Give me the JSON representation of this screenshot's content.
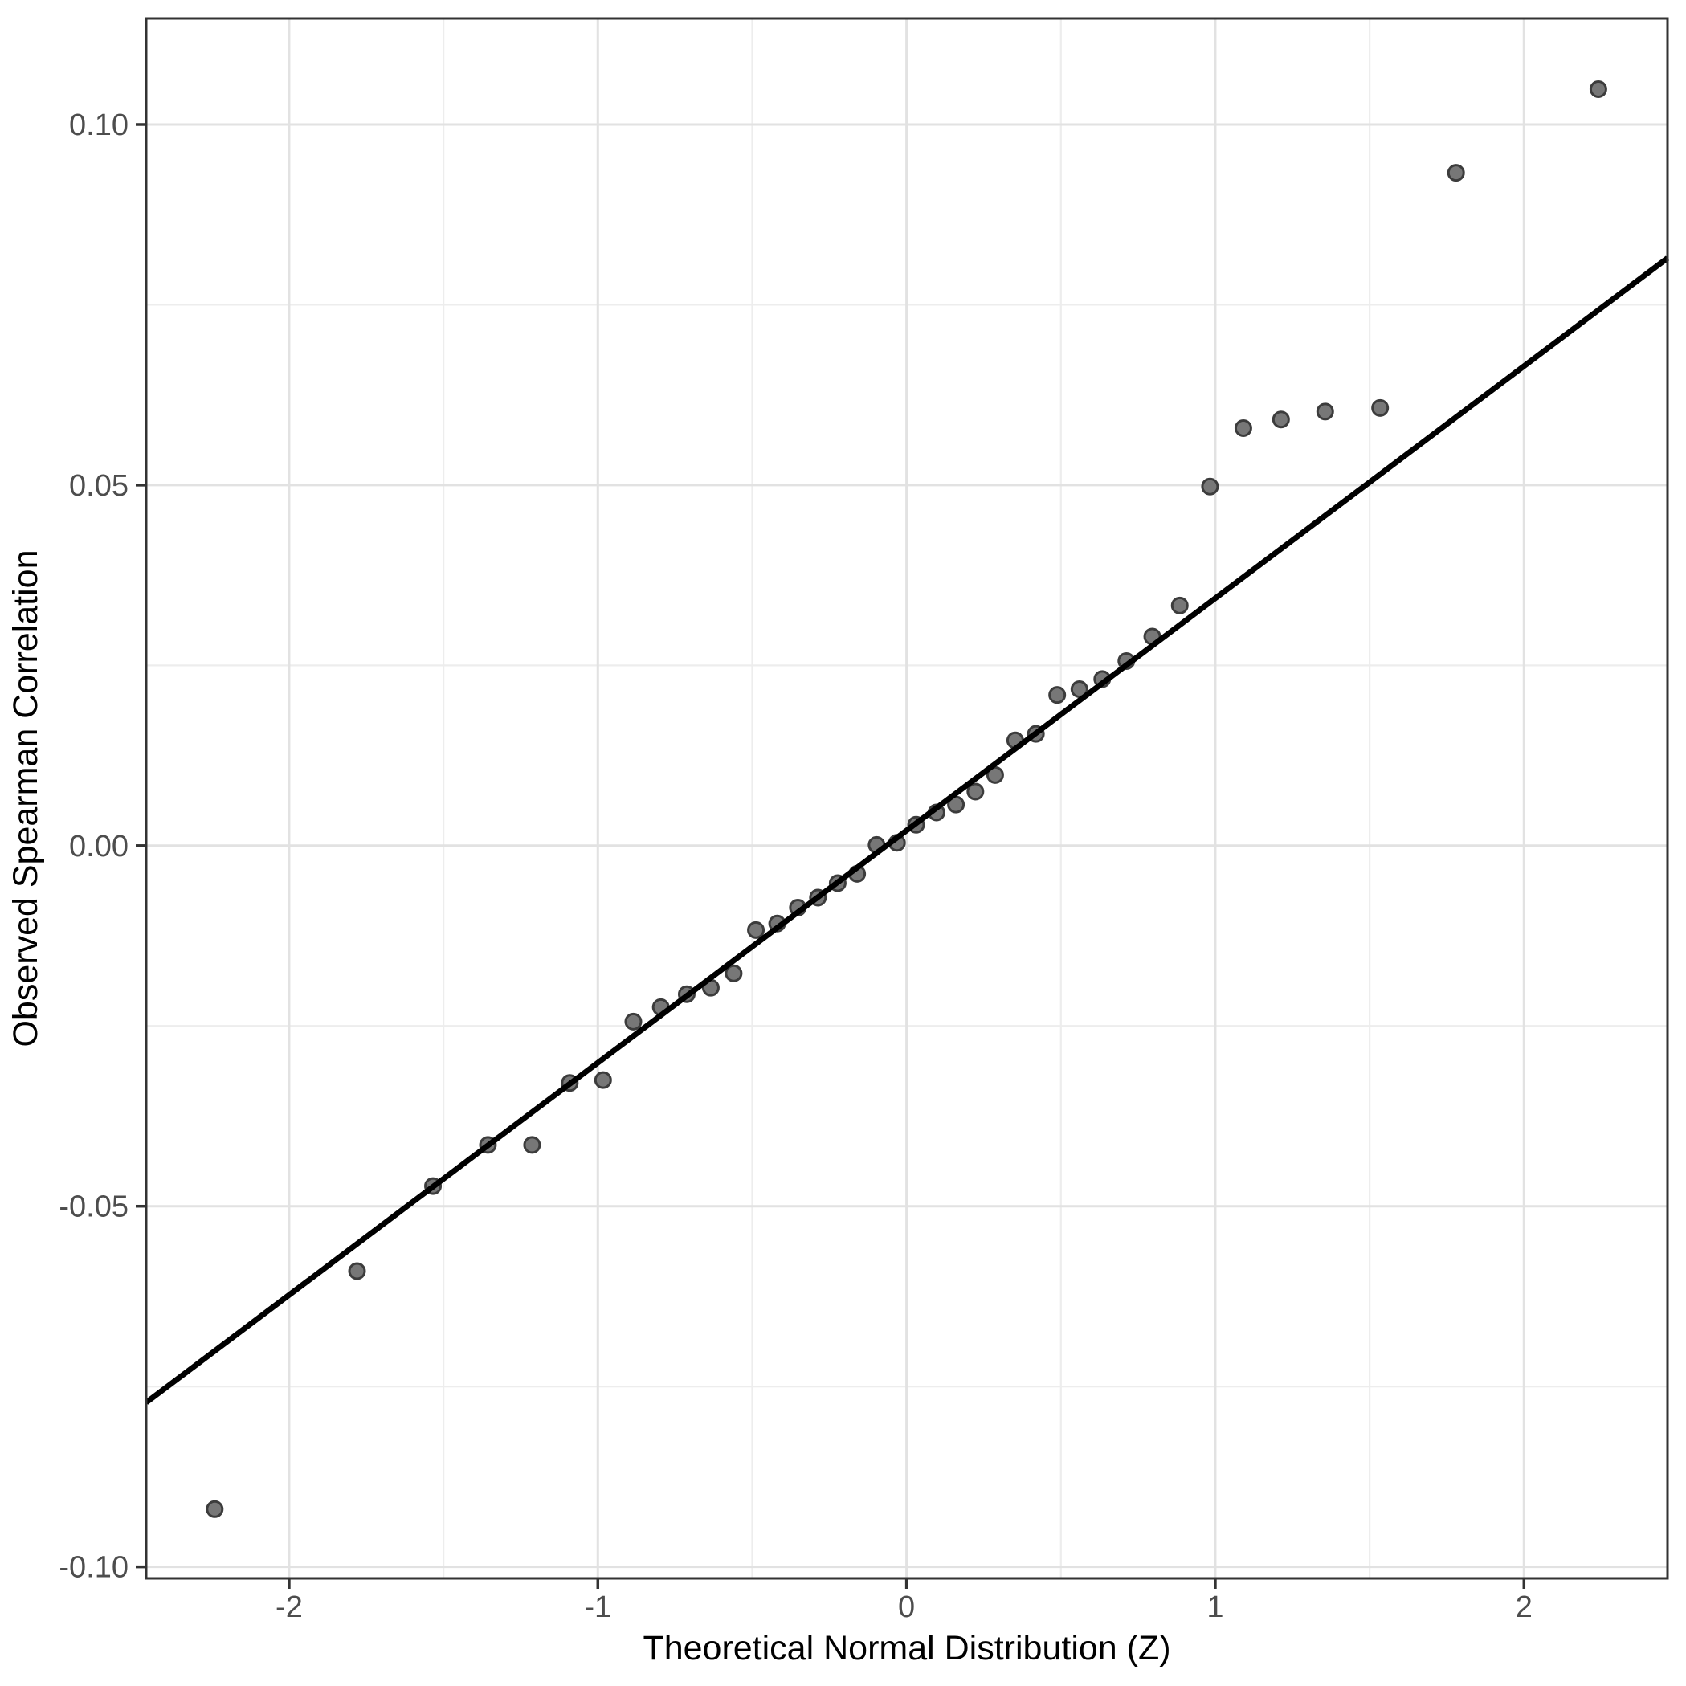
{
  "figure": {
    "background": "#FFFFFF",
    "kind": "qq-plot"
  },
  "chart_data": {
    "type": "scatter",
    "title": "",
    "xlabel": "Theoretical Normal Distribution (Z)",
    "ylabel": "Observed Spearman Correlation",
    "xlim": [
      -2.463,
      2.465
    ],
    "ylim": [
      -0.1016,
      0.1147
    ],
    "x_ticks": [
      {
        "value": -2,
        "label": "-2"
      },
      {
        "value": -1,
        "label": "-1"
      },
      {
        "value": 0,
        "label": "0"
      },
      {
        "value": 1,
        "label": "1"
      },
      {
        "value": 2,
        "label": "2"
      }
    ],
    "y_ticks": [
      {
        "value": 0.1,
        "label": "0.10"
      },
      {
        "value": 0.05,
        "label": "0.05"
      },
      {
        "value": 0.0,
        "label": "0.00"
      },
      {
        "value": -0.05,
        "label": "-0.05"
      },
      {
        "value": -0.1,
        "label": "-0.10"
      }
    ],
    "x_minor": [
      -1.5,
      -0.5,
      0.5,
      1.5
    ],
    "y_minor": [
      0.075,
      0.025,
      -0.025,
      -0.075
    ],
    "grid": "major+minor",
    "legend_position": "none",
    "points": [
      {
        "z": -2.241,
        "rho": -0.092
      },
      {
        "z": -1.78,
        "rho": -0.059
      },
      {
        "z": -1.534,
        "rho": -0.0472
      },
      {
        "z": -1.356,
        "rho": -0.0415
      },
      {
        "z": -1.213,
        "rho": -0.0415
      },
      {
        "z": -1.091,
        "rho": -0.0329
      },
      {
        "z": -0.983,
        "rho": -0.0325
      },
      {
        "z": -0.885,
        "rho": -0.0244
      },
      {
        "z": -0.796,
        "rho": -0.0224
      },
      {
        "z": -0.712,
        "rho": -0.0206
      },
      {
        "z": -0.634,
        "rho": -0.0197
      },
      {
        "z": -0.56,
        "rho": -0.0177
      },
      {
        "z": -0.488,
        "rho": -0.0117
      },
      {
        "z": -0.419,
        "rho": -0.0108
      },
      {
        "z": -0.352,
        "rho": -0.0086
      },
      {
        "z": -0.287,
        "rho": -0.0072
      },
      {
        "z": -0.223,
        "rho": -0.0052
      },
      {
        "z": -0.16,
        "rho": -0.0039
      },
      {
        "z": -0.097,
        "rho": 0.0001
      },
      {
        "z": -0.031,
        "rho": 0.0004
      },
      {
        "z": 0.031,
        "rho": 0.0029
      },
      {
        "z": 0.097,
        "rho": 0.0046
      },
      {
        "z": 0.16,
        "rho": 0.0057
      },
      {
        "z": 0.223,
        "rho": 0.0075
      },
      {
        "z": 0.287,
        "rho": 0.0098
      },
      {
        "z": 0.352,
        "rho": 0.0146
      },
      {
        "z": 0.419,
        "rho": 0.0155
      },
      {
        "z": 0.488,
        "rho": 0.0209
      },
      {
        "z": 0.56,
        "rho": 0.0217
      },
      {
        "z": 0.634,
        "rho": 0.0231
      },
      {
        "z": 0.712,
        "rho": 0.0256
      },
      {
        "z": 0.796,
        "rho": 0.029
      },
      {
        "z": 0.885,
        "rho": 0.0333
      },
      {
        "z": 0.983,
        "rho": 0.0498
      },
      {
        "z": 1.091,
        "rho": 0.0579
      },
      {
        "z": 1.213,
        "rho": 0.0591
      },
      {
        "z": 1.356,
        "rho": 0.0602
      },
      {
        "z": 1.534,
        "rho": 0.0607
      },
      {
        "z": 1.78,
        "rho": 0.0933
      },
      {
        "z": 2.241,
        "rho": 0.1049
      }
    ],
    "ref_line": {
      "slope": 0.0322,
      "intercept": 0.0021
    },
    "colors": {
      "point_fill": "#777777",
      "point_stroke": "#3C3C3C",
      "ref_line": "#000000",
      "grid_major": "#E2E2E2",
      "grid_minor": "#EDEDED",
      "panel_border": "#333333",
      "tick_mark": "#333333",
      "tick_label": "#4D4D4D",
      "axis_title": "#000000",
      "panel_background": "#FFFFFF"
    }
  }
}
